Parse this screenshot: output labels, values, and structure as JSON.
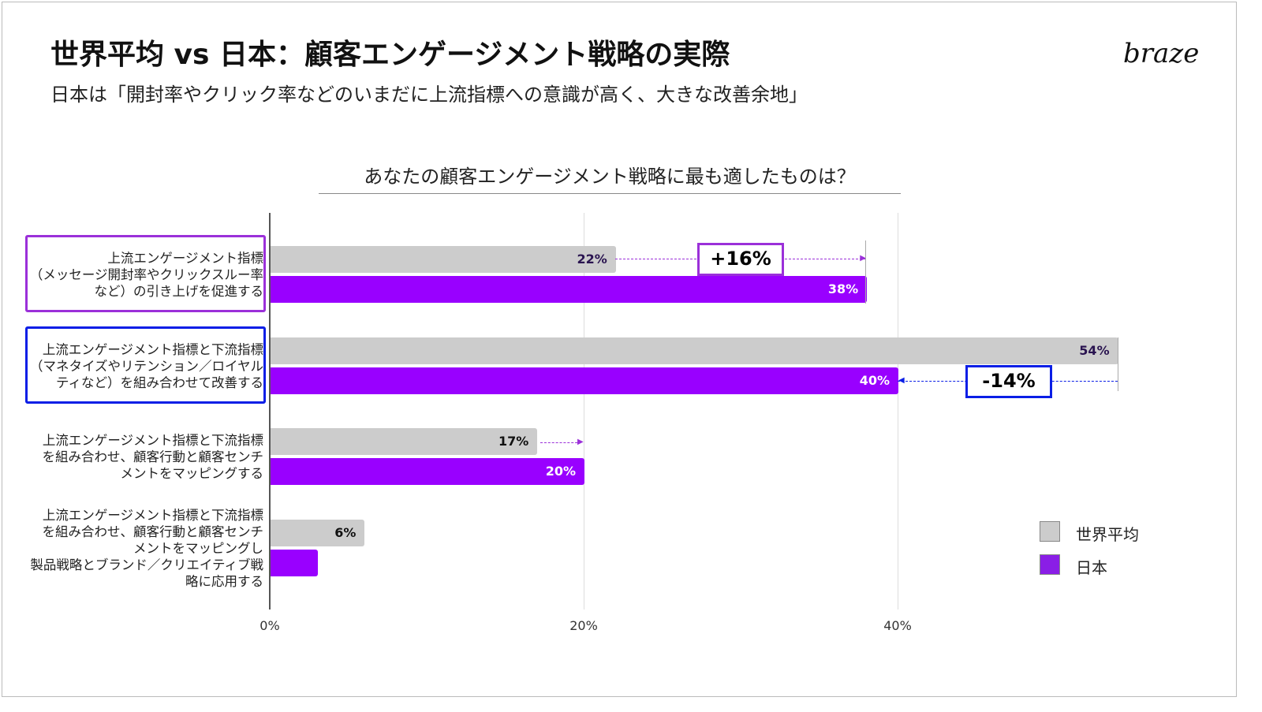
{
  "header": {
    "title": "世界平均 vs 日本：顧客エンゲージメント戦略の実際",
    "subtitle": "日本は「開封率やクリック率などのいまだに上流指標への意識が高く、大きな改善余地」",
    "logo": "braze"
  },
  "chart_data": {
    "type": "bar",
    "orientation": "horizontal",
    "title": "あなたの顧客エンゲージメント戦略に最も適したものは？",
    "categories": [
      "上流エンゲージメント指標\n（メッセージ開封率やクリックスルー率\nなど）の引き上げを促進する",
      "上流エンゲージメント指標と下流指標\n（マネタイズやリテンション／ロイヤル\nティなど）を組み合わせて改善する",
      "上流エンゲージメント指標と下流指標\nを組み合わせ、顧客行動と顧客センチ\nメントをマッピングする",
      "上流エンゲージメント指標と下流指標\nを組み合わせ、顧客行動と顧客センチ\nメントをマッピングし\n製品戦略とブランド／クリエイティブ戦\n略に応用する"
    ],
    "series": [
      {
        "name": "世界平均",
        "color": "#cccccc",
        "values": [
          22,
          54,
          17,
          6
        ],
        "labels": [
          "22%",
          "54%",
          "17%",
          "6%"
        ]
      },
      {
        "name": "日本",
        "color": "#9900ff",
        "values": [
          38,
          40,
          20,
          3
        ],
        "labels": [
          "38%",
          "40%",
          "20%",
          ""
        ]
      }
    ],
    "xlim": [
      0,
      55
    ],
    "xticks": [
      "0%",
      "20%",
      "40%"
    ],
    "xtick_values": [
      0,
      20,
      40
    ],
    "grid": true,
    "legend": "right",
    "annotations": [
      {
        "text": "+16%",
        "category": 0,
        "color": "#9b30d9"
      },
      {
        "text": "-14%",
        "category": 1,
        "color": "#0a1ee6"
      }
    ],
    "highlight_colors": [
      "#9b30d9",
      "#0a1ee6"
    ]
  }
}
